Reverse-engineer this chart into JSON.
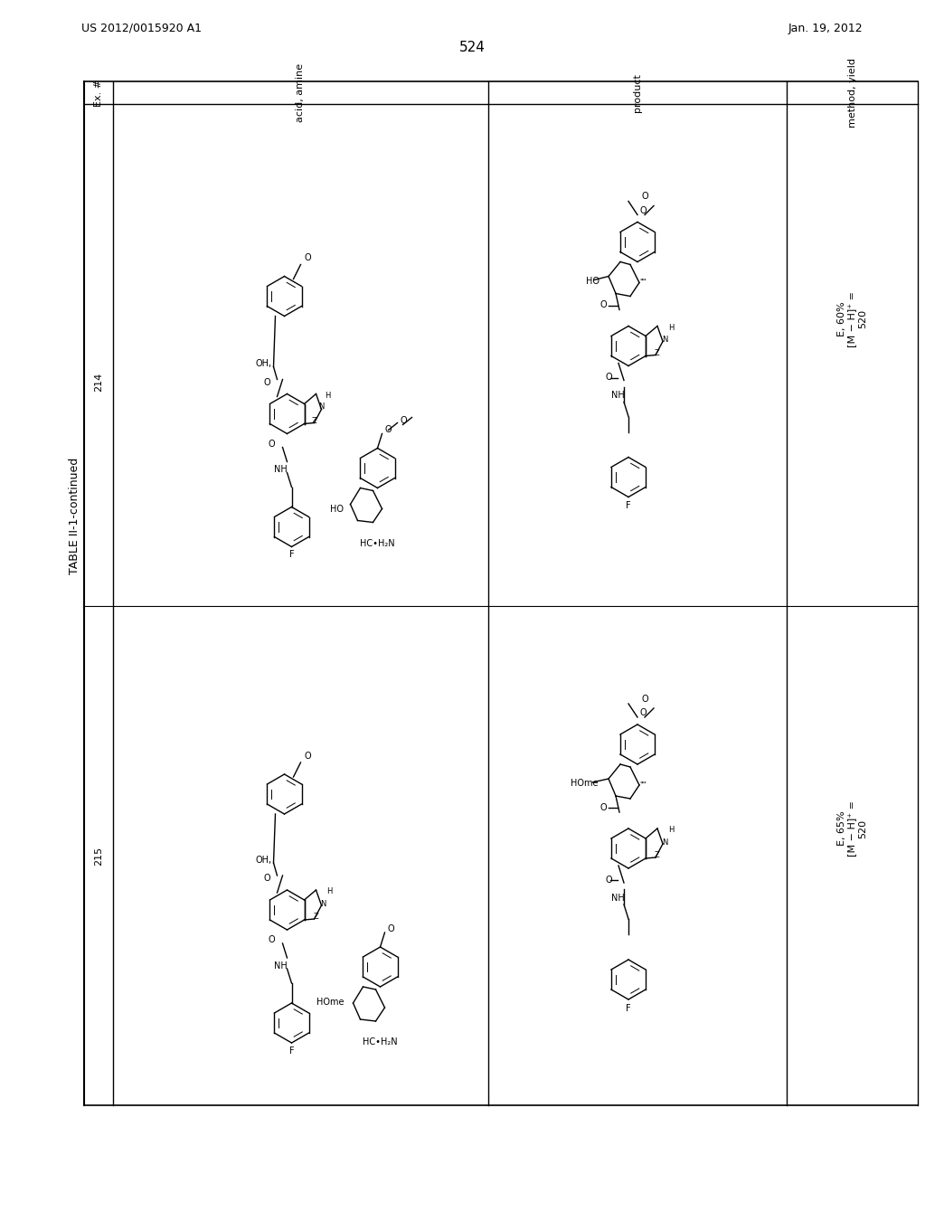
{
  "page_number": "524",
  "patent_number": "US 2012/0015920 A1",
  "date": "Jan. 19, 2012",
  "table_title": "TABLE II-1-continued",
  "col_headers": [
    "Ex. #",
    "acid, amine",
    "product",
    "method, yield"
  ],
  "rows": [
    {
      "ex": "214",
      "method": "E, 60%\n[M - H]+ =\n520"
    },
    {
      "ex": "215",
      "method": "E, 65%\n[M - H]+ =\n520"
    }
  ],
  "bg_color": "#ffffff",
  "text_color": "#000000",
  "line_color": "#000000"
}
